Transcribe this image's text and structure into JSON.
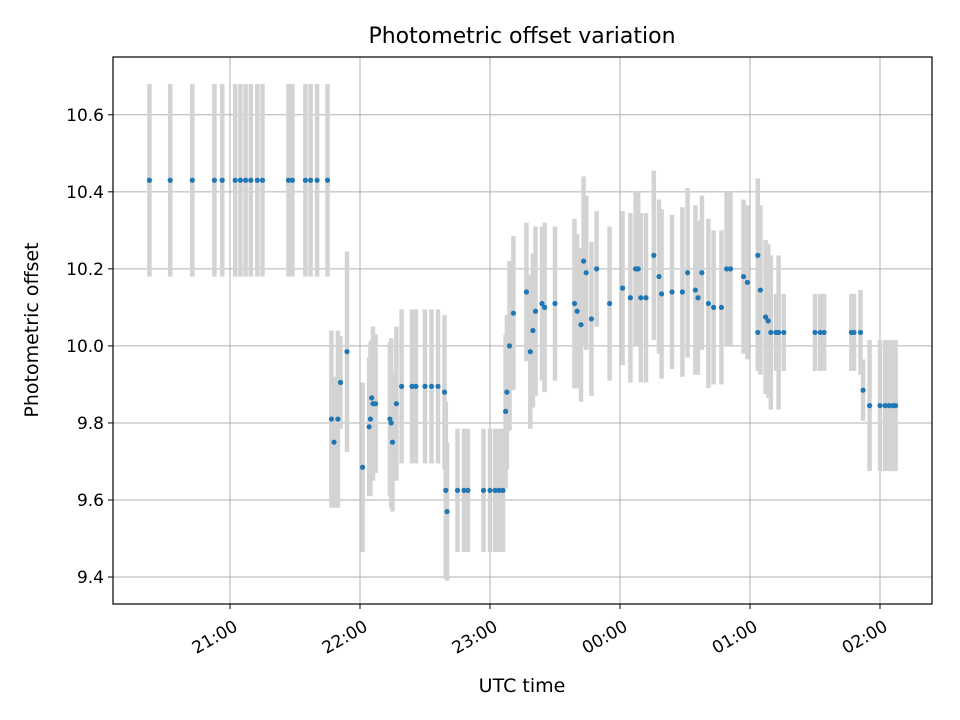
{
  "chart_data": {
    "type": "scatter",
    "title": "Photometric offset variation",
    "xlabel": "UTC time",
    "ylabel": "Photometric offset",
    "x_unit": "hours of UTC time relative to 00:00 (negative = previous evening)",
    "xlim": [
      -3.9,
      2.4
    ],
    "ylim": [
      9.33,
      10.75
    ],
    "yticks": [
      9.4,
      9.6,
      9.8,
      10.0,
      10.2,
      10.4,
      10.6
    ],
    "xticks": [
      {
        "value": -3,
        "label": "21:00"
      },
      {
        "value": -2,
        "label": "22:00"
      },
      {
        "value": -1,
        "label": "23:00"
      },
      {
        "value": 0,
        "label": "00:00"
      },
      {
        "value": 1,
        "label": "01:00"
      },
      {
        "value": 2,
        "label": "02:00"
      }
    ],
    "grid": true,
    "colors": {
      "point": "#1f77b4",
      "errorbar": "#d3d3d3",
      "grid": "#b0b0b0"
    },
    "points": [
      [
        -3.62,
        10.43,
        0.25
      ],
      [
        -3.46,
        10.43,
        0.25
      ],
      [
        -3.29,
        10.43,
        0.25
      ],
      [
        -3.12,
        10.43,
        0.25
      ],
      [
        -3.06,
        10.43,
        0.25
      ],
      [
        -2.96,
        10.43,
        0.25
      ],
      [
        -2.92,
        10.43,
        0.25
      ],
      [
        -2.88,
        10.43,
        0.25
      ],
      [
        -2.84,
        10.43,
        0.25
      ],
      [
        -2.79,
        10.43,
        0.25
      ],
      [
        -2.75,
        10.43,
        0.25
      ],
      [
        -2.55,
        10.43,
        0.25
      ],
      [
        -2.52,
        10.43,
        0.25
      ],
      [
        -2.42,
        10.43,
        0.25
      ],
      [
        -2.38,
        10.43,
        0.25
      ],
      [
        -2.33,
        10.43,
        0.25
      ],
      [
        -2.25,
        10.43,
        0.25
      ],
      [
        -2.22,
        9.81,
        0.23
      ],
      [
        -2.2,
        9.75,
        0.17
      ],
      [
        -2.17,
        9.81,
        0.23
      ],
      [
        -2.15,
        9.905,
        0.12
      ],
      [
        -2.1,
        9.985,
        0.26
      ],
      [
        -1.98,
        9.685,
        0.22
      ],
      [
        -1.93,
        9.79,
        0.18
      ],
      [
        -1.92,
        9.81,
        0.2
      ],
      [
        -1.91,
        9.865,
        0.15
      ],
      [
        -1.9,
        9.85,
        0.2
      ],
      [
        -1.88,
        9.85,
        0.18
      ],
      [
        -1.77,
        9.81,
        0.2
      ],
      [
        -1.76,
        9.8,
        0.22
      ],
      [
        -1.75,
        9.75,
        0.18
      ],
      [
        -1.72,
        9.85,
        0.2
      ],
      [
        -1.68,
        9.895,
        0.2
      ],
      [
        -1.6,
        9.895,
        0.2
      ],
      [
        -1.57,
        9.895,
        0.2
      ],
      [
        -1.5,
        9.895,
        0.2
      ],
      [
        -1.45,
        9.895,
        0.2
      ],
      [
        -1.4,
        9.895,
        0.2
      ],
      [
        -1.35,
        9.88,
        0.2
      ],
      [
        -1.34,
        9.625,
        0.23
      ],
      [
        -1.33,
        9.57,
        0.18
      ],
      [
        -1.25,
        9.625,
        0.16
      ],
      [
        -1.2,
        9.625,
        0.16
      ],
      [
        -1.17,
        9.625,
        0.16
      ],
      [
        -1.05,
        9.625,
        0.16
      ],
      [
        -1.0,
        9.625,
        0.16
      ],
      [
        -0.96,
        9.625,
        0.16
      ],
      [
        -0.93,
        9.625,
        0.16
      ],
      [
        -0.9,
        9.625,
        0.16
      ],
      [
        -0.88,
        9.83,
        0.2
      ],
      [
        -0.87,
        9.88,
        0.2
      ],
      [
        -0.85,
        10.0,
        0.22
      ],
      [
        -0.82,
        10.085,
        0.2
      ],
      [
        -0.72,
        10.14,
        0.18
      ],
      [
        -0.69,
        9.985,
        0.2
      ],
      [
        -0.67,
        10.04,
        0.2
      ],
      [
        -0.65,
        10.09,
        0.22
      ],
      [
        -0.6,
        10.11,
        0.2
      ],
      [
        -0.58,
        10.1,
        0.22
      ],
      [
        -0.5,
        10.11,
        0.2
      ],
      [
        -0.35,
        10.11,
        0.22
      ],
      [
        -0.33,
        10.09,
        0.2
      ],
      [
        -0.3,
        10.055,
        0.2
      ],
      [
        -0.28,
        10.22,
        0.22
      ],
      [
        -0.26,
        10.19,
        0.2
      ],
      [
        -0.22,
        10.07,
        0.2
      ],
      [
        -0.18,
        10.2,
        0.15
      ],
      [
        -0.08,
        10.11,
        0.2
      ],
      [
        0.02,
        10.15,
        0.2
      ],
      [
        0.08,
        10.125,
        0.22
      ],
      [
        0.12,
        10.2,
        0.2
      ],
      [
        0.14,
        10.2,
        0.2
      ],
      [
        0.16,
        10.125,
        0.22
      ],
      [
        0.2,
        10.125,
        0.22
      ],
      [
        0.26,
        10.235,
        0.22
      ],
      [
        0.3,
        10.18,
        0.2
      ],
      [
        0.32,
        10.135,
        0.22
      ],
      [
        0.4,
        10.14,
        0.2
      ],
      [
        0.48,
        10.14,
        0.22
      ],
      [
        0.52,
        10.19,
        0.22
      ],
      [
        0.58,
        10.145,
        0.22
      ],
      [
        0.6,
        10.125,
        0.2
      ],
      [
        0.63,
        10.19,
        0.2
      ],
      [
        0.68,
        10.11,
        0.22
      ],
      [
        0.72,
        10.1,
        0.2
      ],
      [
        0.78,
        10.1,
        0.2
      ],
      [
        0.82,
        10.2,
        0.2
      ],
      [
        0.85,
        10.2,
        0.2
      ],
      [
        0.95,
        10.18,
        0.2
      ],
      [
        0.98,
        10.165,
        0.2
      ],
      [
        1.06,
        10.235,
        0.2
      ],
      [
        1.08,
        10.145,
        0.22
      ],
      [
        1.12,
        10.075,
        0.2
      ],
      [
        1.14,
        10.065,
        0.2
      ],
      [
        1.16,
        10.035,
        0.2
      ],
      [
        1.22,
        10.035,
        0.2
      ],
      [
        1.06,
        10.035,
        0.1
      ],
      [
        1.2,
        10.035,
        0.1
      ],
      [
        1.22,
        10.035,
        0.1
      ],
      [
        1.26,
        10.035,
        0.1
      ],
      [
        1.5,
        10.035,
        0.1
      ],
      [
        1.54,
        10.035,
        0.1
      ],
      [
        1.57,
        10.035,
        0.1
      ],
      [
        1.78,
        10.035,
        0.1
      ],
      [
        1.8,
        10.035,
        0.1
      ],
      [
        1.85,
        10.035,
        0.11
      ],
      [
        1.87,
        9.885,
        0.08
      ],
      [
        1.92,
        9.845,
        0.17
      ],
      [
        2.0,
        9.845,
        0.17
      ],
      [
        2.04,
        9.845,
        0.17
      ],
      [
        2.07,
        9.845,
        0.17
      ],
      [
        2.1,
        9.845,
        0.17
      ],
      [
        2.12,
        9.845,
        0.17
      ]
    ]
  }
}
